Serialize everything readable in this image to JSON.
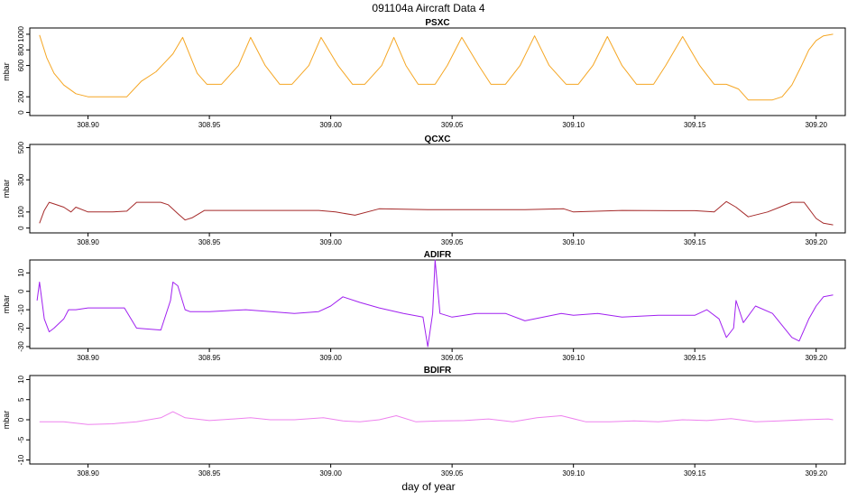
{
  "title": "091104a   Aircraft Data 4",
  "xlabel": "day of year",
  "chart_data": [
    {
      "type": "line",
      "title": "PSXC",
      "ylabel": "mbar",
      "color": "#f5a623",
      "xlim": [
        308.876,
        309.212
      ],
      "ylim": [
        -40,
        1080
      ],
      "xticks": [
        "308.90",
        "308.95",
        "309.00",
        "309.05",
        "309.10",
        "309.15",
        "309.20"
      ],
      "yticks": [
        "0",
        "200",
        "600",
        "800",
        "1000"
      ],
      "x": [
        308.88,
        308.883,
        308.886,
        308.89,
        308.895,
        308.9,
        308.905,
        308.91,
        308.916,
        308.922,
        308.928,
        308.932,
        308.935,
        308.939,
        308.945,
        308.949,
        308.955,
        308.962,
        308.967,
        308.973,
        308.979,
        308.984,
        308.991,
        308.996,
        309.003,
        309.009,
        309.014,
        309.021,
        309.026,
        309.031,
        309.036,
        309.043,
        309.048,
        309.054,
        309.061,
        309.066,
        309.072,
        309.078,
        309.084,
        309.09,
        309.097,
        309.102,
        309.108,
        309.114,
        309.12,
        309.126,
        309.133,
        309.138,
        309.145,
        309.152,
        309.158,
        309.163,
        309.168,
        309.172,
        309.182,
        309.186,
        309.19,
        309.194,
        309.197,
        309.2,
        309.203,
        309.207
      ],
      "values": [
        990,
        700,
        500,
        350,
        240,
        200,
        200,
        200,
        200,
        400,
        520,
        650,
        750,
        960,
        500,
        360,
        360,
        600,
        960,
        600,
        360,
        360,
        600,
        960,
        600,
        360,
        360,
        600,
        960,
        600,
        360,
        360,
        600,
        960,
        600,
        360,
        360,
        600,
        980,
        600,
        360,
        360,
        600,
        970,
        600,
        360,
        360,
        600,
        970,
        600,
        360,
        360,
        300,
        160,
        160,
        200,
        350,
        600,
        800,
        920,
        980,
        1000
      ]
    },
    {
      "type": "line",
      "title": "QCXC",
      "ylabel": "mbar",
      "color": "#a52a2a",
      "xlim": [
        308.876,
        309.212
      ],
      "ylim": [
        -30,
        520
      ],
      "xticks": [
        "308.90",
        "308.95",
        "309.00",
        "309.05",
        "309.10",
        "309.15",
        "309.20"
      ],
      "yticks": [
        "0",
        "100",
        "300",
        "500"
      ],
      "x": [
        308.88,
        308.882,
        308.884,
        308.886,
        308.89,
        308.893,
        308.895,
        308.9,
        308.91,
        308.916,
        308.92,
        308.93,
        308.933,
        308.937,
        308.94,
        308.943,
        308.948,
        308.96,
        308.97,
        308.985,
        308.995,
        309.002,
        309.01,
        309.02,
        309.04,
        309.06,
        309.08,
        309.096,
        309.1,
        309.12,
        309.14,
        309.15,
        309.158,
        309.163,
        309.167,
        309.172,
        309.18,
        309.185,
        309.19,
        309.195,
        309.2,
        309.203,
        309.207
      ],
      "values": [
        30,
        110,
        160,
        150,
        130,
        100,
        130,
        100,
        100,
        105,
        160,
        160,
        145,
        90,
        50,
        65,
        110,
        110,
        110,
        110,
        110,
        100,
        80,
        120,
        115,
        115,
        115,
        120,
        100,
        110,
        108,
        108,
        100,
        165,
        130,
        70,
        100,
        130,
        160,
        160,
        60,
        30,
        20
      ]
    },
    {
      "type": "line",
      "title": "ADIFR",
      "ylabel": "mbar",
      "color": "#a020f0",
      "xlim": [
        308.876,
        309.212
      ],
      "ylim": [
        -31,
        17
      ],
      "xticks": [
        "308.90",
        "308.95",
        "309.00",
        "309.05",
        "309.10",
        "309.15",
        "309.20"
      ],
      "yticks": [
        "-30",
        "-20",
        "-10",
        "0",
        "10"
      ],
      "x": [
        308.879,
        308.88,
        308.882,
        308.884,
        308.886,
        308.89,
        308.892,
        308.895,
        308.9,
        308.915,
        308.92,
        308.93,
        308.934,
        308.935,
        308.937,
        308.94,
        308.942,
        308.95,
        308.965,
        308.985,
        308.995,
        309.0,
        309.005,
        309.012,
        309.02,
        309.03,
        309.038,
        309.04,
        309.042,
        309.043,
        309.045,
        309.05,
        309.06,
        309.072,
        309.08,
        309.095,
        309.1,
        309.11,
        309.12,
        309.135,
        309.15,
        309.155,
        309.16,
        309.163,
        309.166,
        309.167,
        309.17,
        309.175,
        309.182,
        309.19,
        309.193,
        309.197,
        309.2,
        309.203,
        309.207
      ],
      "values": [
        -5,
        5,
        -15,
        -22,
        -20,
        -15,
        -10,
        -10,
        -9,
        -9,
        -20,
        -21,
        -5,
        5,
        3,
        -10,
        -11,
        -11,
        -10,
        -12,
        -11,
        -8,
        -3,
        -6,
        -9,
        -12,
        -14,
        -30,
        -12,
        17,
        -12,
        -14,
        -12,
        -12,
        -16,
        -12,
        -13,
        -12,
        -14,
        -13,
        -13,
        -10,
        -15,
        -25,
        -20,
        -5,
        -17,
        -8,
        -12,
        -25,
        -27,
        -15,
        -8,
        -3,
        -2
      ]
    },
    {
      "type": "line",
      "title": "BDIFR",
      "ylabel": "mbar",
      "color": "#ee82ee",
      "xlim": [
        308.876,
        309.212
      ],
      "ylim": [
        -11,
        11
      ],
      "xticks": [
        "308.90",
        "308.95",
        "309.00",
        "309.05",
        "309.10",
        "309.15",
        "309.20"
      ],
      "yticks": [
        "-10",
        "-5",
        "0",
        "5",
        "10"
      ],
      "x": [
        308.88,
        308.89,
        308.9,
        308.91,
        308.92,
        308.93,
        308.935,
        308.94,
        308.95,
        308.96,
        308.967,
        308.975,
        308.985,
        308.997,
        309.005,
        309.012,
        309.02,
        309.027,
        309.035,
        309.045,
        309.055,
        309.065,
        309.075,
        309.085,
        309.095,
        309.105,
        309.115,
        309.125,
        309.135,
        309.145,
        309.155,
        309.165,
        309.175,
        309.185,
        309.195,
        309.205,
        309.207
      ],
      "values": [
        -0.5,
        -0.5,
        -1.2,
        -1.0,
        -0.5,
        0.5,
        2.0,
        0.5,
        -0.2,
        0.2,
        0.5,
        0.0,
        0.0,
        0.5,
        -0.3,
        -0.5,
        0.0,
        1.0,
        -0.5,
        -0.3,
        -0.2,
        0.2,
        -0.5,
        0.5,
        1.0,
        -0.5,
        -0.5,
        -0.3,
        -0.5,
        0.0,
        -0.2,
        0.3,
        -0.5,
        -0.3,
        0.0,
        0.2,
        0.0
      ]
    }
  ]
}
